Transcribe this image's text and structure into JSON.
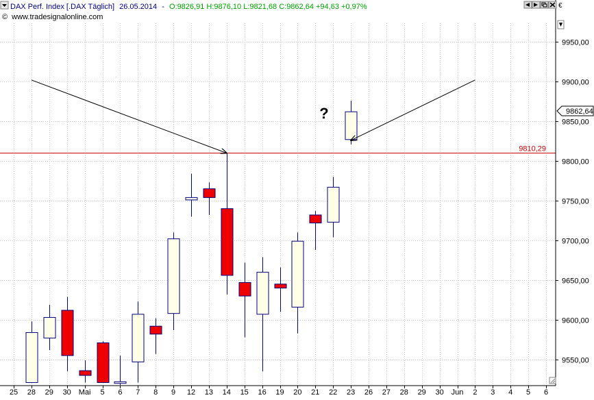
{
  "header": {
    "instrument": "DAX Perf. Index [.DAX Täglich]",
    "date": "26.05.2014",
    "separator": "-",
    "ohlc_text": "O:9826,91 H:9876,10 L:9821,68 C:9862,64 +94,63 +0,97%",
    "website": "www.tradesignalonline.com",
    "copyright_symbol": "©"
  },
  "window_controls": [
    "left-arrow",
    "right-arrow",
    "restore",
    "close"
  ],
  "currency_symbol": "€",
  "price_label": "9862,64",
  "resistance_label": "9810,29",
  "question_mark": "?",
  "colors": {
    "bull_fill": "#ffffe8",
    "bear_fill": "#ee0000",
    "candle_stroke": "#000080",
    "resistance_line": "#cc0000",
    "grid": "#c8c8c8",
    "header_green": "#00a000",
    "header_text": "#000080"
  },
  "chart_data": {
    "type": "candlestick",
    "title": "DAX Perf. Index [.DAX Täglich]",
    "xlabel": "",
    "ylabel": "",
    "ylim": [
      9518,
      9995
    ],
    "x_tick_labels": [
      "25",
      "28",
      "29",
      "30",
      "Mai",
      "5",
      "6",
      "7",
      "8",
      "9",
      "12",
      "13",
      "14",
      "15",
      "16",
      "19",
      "20",
      "21",
      "22",
      "23",
      "26",
      "27",
      "28",
      "29",
      "30",
      "Jun",
      "2",
      "3",
      "4",
      "5",
      "6"
    ],
    "y_ticks": [
      9550,
      9600,
      9650,
      9700,
      9750,
      9800,
      9850,
      9900,
      9950
    ],
    "y_tick_labels": [
      "9550,00",
      "9600,00",
      "9650,00",
      "9700,00",
      "9750,00",
      "9800,00",
      "9850,00",
      "9900,00",
      "9950,00"
    ],
    "resistance_level": 9810.29,
    "last_price": 9862.64,
    "candles": [
      {
        "date": "28",
        "open": 9521,
        "high": 9598,
        "low": 9521,
        "close": 9584
      },
      {
        "date": "29",
        "open": 9577,
        "high": 9619,
        "low": 9562,
        "close": 9603
      },
      {
        "date": "30",
        "open": 9612,
        "high": 9629,
        "low": 9535,
        "close": 9555
      },
      {
        "date": "Mai",
        "open": 9536,
        "high": 9549,
        "low": 9521,
        "close": 9530
      },
      {
        "date": "5",
        "open": 9571,
        "high": 9573,
        "low": 9521,
        "close": 9521
      },
      {
        "date": "6",
        "open": 9520,
        "high": 9555,
        "low": 9518,
        "close": 9522
      },
      {
        "date": "7",
        "open": 9547,
        "high": 9623,
        "low": 9521,
        "close": 9607
      },
      {
        "date": "8",
        "open": 9592,
        "high": 9602,
        "low": 9557,
        "close": 9582
      },
      {
        "date": "9",
        "open": 9608,
        "high": 9710,
        "low": 9587,
        "close": 9702
      },
      {
        "date": "12",
        "open": 9751,
        "high": 9784,
        "low": 9730,
        "close": 9754
      },
      {
        "date": "13",
        "open": 9765,
        "high": 9773,
        "low": 9732,
        "close": 9754
      },
      {
        "date": "14",
        "open": 9740,
        "high": 9810,
        "low": 9632,
        "close": 9656
      },
      {
        "date": "15",
        "open": 9647,
        "high": 9672,
        "low": 9578,
        "close": 9630
      },
      {
        "date": "16",
        "open": 9607,
        "high": 9679,
        "low": 9535,
        "close": 9660
      },
      {
        "date": "19",
        "open": 9645,
        "high": 9666,
        "low": 9610,
        "close": 9640
      },
      {
        "date": "20",
        "open": 9616,
        "high": 9710,
        "low": 9583,
        "close": 9699
      },
      {
        "date": "21",
        "open": 9732,
        "high": 9737,
        "low": 9688,
        "close": 9722
      },
      {
        "date": "22",
        "open": 9723,
        "high": 9780,
        "low": 9704,
        "close": 9767
      },
      {
        "date": "23",
        "open": 9827,
        "high": 9876,
        "low": 9821,
        "close": 9862
      }
    ],
    "annotations": [
      {
        "type": "arrow",
        "from": {
          "date": "28",
          "price": 9902
        },
        "to": {
          "date": "14",
          "price": 9810
        }
      },
      {
        "type": "arrow",
        "from": {
          "date": "2",
          "price": 9902
        },
        "to": {
          "date": "23",
          "price": 9826
        }
      }
    ]
  }
}
